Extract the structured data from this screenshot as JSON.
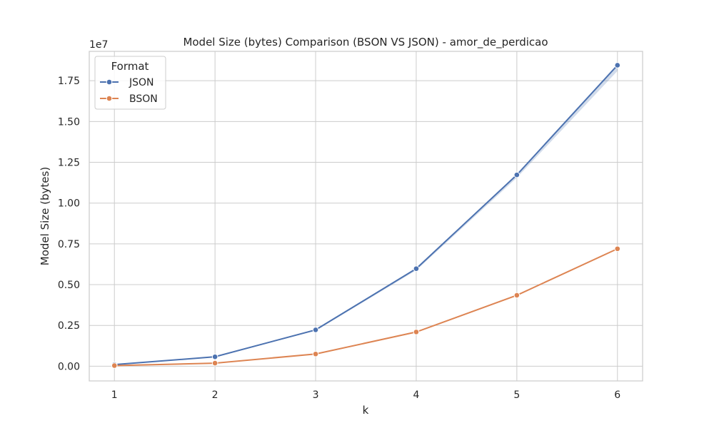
{
  "chart_data": {
    "type": "line",
    "title": "Model Size (bytes) Comparison (BSON VS JSON) - amor_de_perdicao",
    "xlabel": "k",
    "ylabel": "Model Size (bytes)",
    "y_offset_text": "1e7",
    "x": [
      1,
      2,
      3,
      4,
      5,
      6
    ],
    "x_ticks": [
      "1",
      "2",
      "3",
      "4",
      "5",
      "6"
    ],
    "y_ticks": [
      0,
      2500000,
      5000000,
      7500000,
      10000000,
      12500000,
      15000000,
      17500000
    ],
    "y_tick_labels": [
      "0.00",
      "0.25",
      "0.50",
      "0.75",
      "1.00",
      "1.25",
      "1.50",
      "1.75"
    ],
    "xlim": [
      0.75,
      6.25
    ],
    "ylim": [
      -900000,
      19300000
    ],
    "grid": true,
    "legend": {
      "title": "Format",
      "placement": "top-left"
    },
    "series": [
      {
        "name": "JSON",
        "color": "#4c72b0",
        "values": [
          100000,
          580000,
          2230000,
          5980000,
          11730000,
          18450000
        ],
        "ci_low": [
          100000,
          560000,
          2180000,
          5880000,
          11550000,
          18100000
        ],
        "ci_high": [
          110000,
          600000,
          2260000,
          6020000,
          11780000,
          18500000
        ]
      },
      {
        "name": "BSON",
        "color": "#dd8452",
        "values": [
          40000,
          190000,
          750000,
          2100000,
          4350000,
          7200000
        ]
      }
    ]
  }
}
